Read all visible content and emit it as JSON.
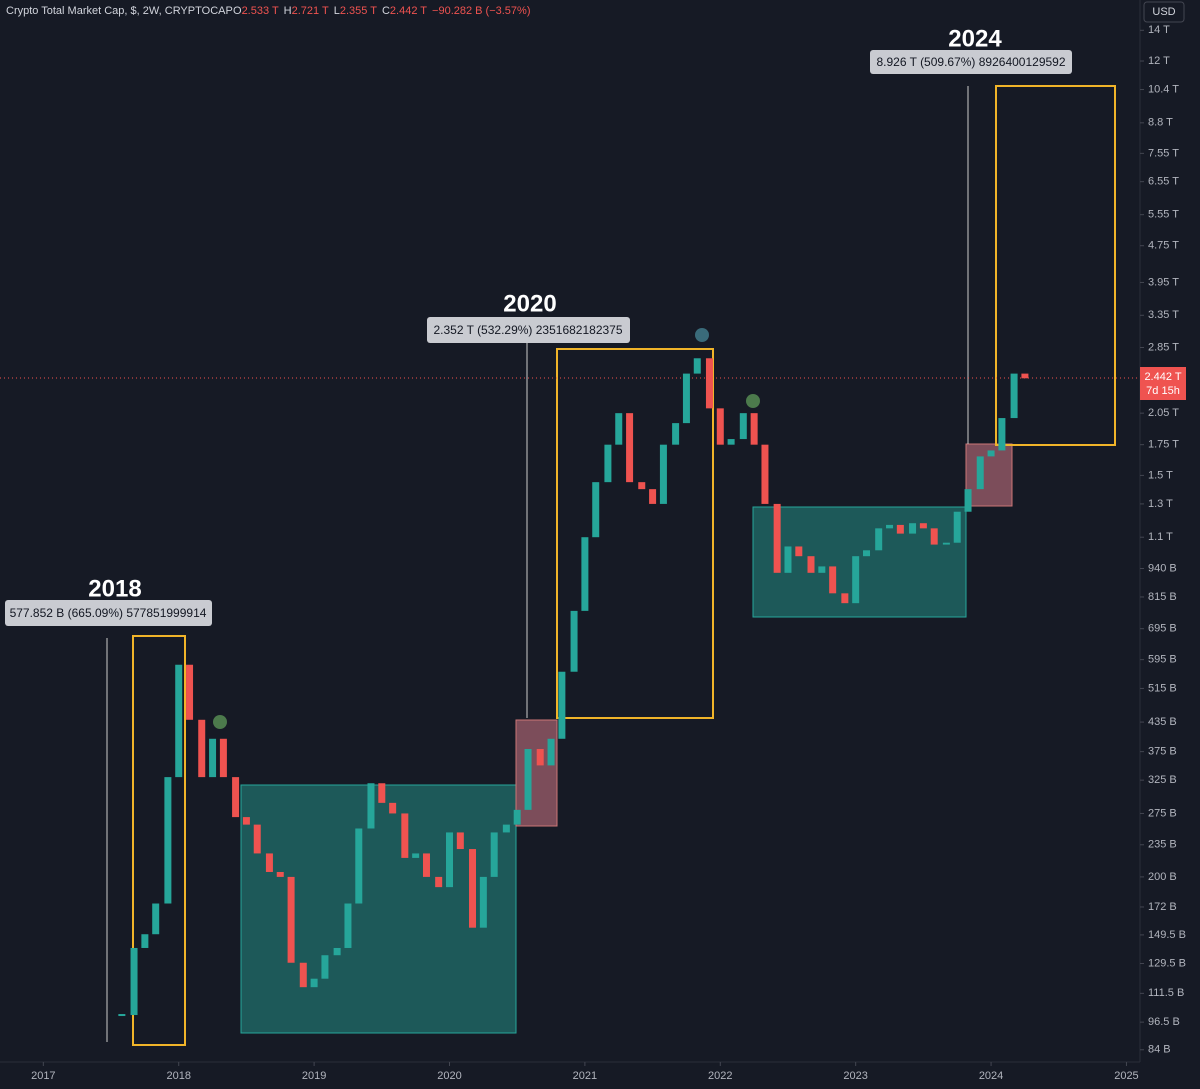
{
  "chart_data": {
    "type": "candlestick",
    "title": "Crypto Total Market Cap, $, 2W, CRYPTOCAP",
    "ohlc": [
      {
        "label": "O",
        "value": "2.533 T"
      },
      {
        "label": "H",
        "value": "2.721 T"
      },
      {
        "label": "L",
        "value": "2.355 T"
      },
      {
        "label": "C",
        "value": "2.442 T"
      }
    ],
    "change": "−90.282 B (−3.57%)",
    "currency": "USD",
    "last_price_label": "2.442 T",
    "countdown": "7d 15h",
    "annotations": [
      {
        "title": "2018",
        "measure": "577.852 B (665.09%) 577851999914"
      },
      {
        "title": "2020",
        "measure": "2.352 T (532.29%) 2351682182375"
      },
      {
        "title": "2024",
        "measure": "8.926 T (509.67%) 8926400129592"
      }
    ],
    "log_scale": true,
    "up_color": "#26a69a",
    "down_color": "#ef5350",
    "x": [
      2017.58,
      2017.67,
      2017.75,
      2017.83,
      2017.92,
      2018.0,
      2018.08,
      2018.17,
      2018.25,
      2018.33,
      2018.42,
      2018.5,
      2018.58,
      2018.67,
      2018.75,
      2018.83,
      2018.92,
      2019.0,
      2019.08,
      2019.17,
      2019.25,
      2019.33,
      2019.42,
      2019.5,
      2019.58,
      2019.67,
      2019.75,
      2019.83,
      2019.92,
      2020.0,
      2020.08,
      2020.17,
      2020.25,
      2020.33,
      2020.42,
      2020.5,
      2020.58,
      2020.67,
      2020.75,
      2020.83,
      2020.92,
      2021.0,
      2021.08,
      2021.17,
      2021.25,
      2021.33,
      2021.42,
      2021.5,
      2021.58,
      2021.67,
      2021.75,
      2021.83,
      2021.92,
      2022.0,
      2022.08,
      2022.17,
      2022.25,
      2022.33,
      2022.42,
      2022.5,
      2022.58,
      2022.67,
      2022.75,
      2022.83,
      2022.92,
      2023.0,
      2023.08,
      2023.17,
      2023.25,
      2023.33,
      2023.42,
      2023.5,
      2023.58,
      2023.67,
      2023.75,
      2023.83,
      2023.92,
      2024.0,
      2024.08,
      2024.17,
      2024.25
    ],
    "values": [
      100,
      140,
      150,
      175,
      330,
      580,
      440,
      330,
      400,
      330,
      270,
      260,
      225,
      205,
      200,
      130,
      115,
      120,
      135,
      140,
      175,
      255,
      320,
      290,
      275,
      220,
      225,
      200,
      190,
      250,
      230,
      155,
      200,
      250,
      260,
      280,
      380,
      350,
      400,
      560,
      760,
      1100,
      1450,
      1750,
      2050,
      1450,
      1400,
      1300,
      1750,
      1950,
      2500,
      2700,
      2100,
      1750,
      1800,
      2050,
      1750,
      1300,
      920,
      1050,
      1000,
      920,
      950,
      830,
      790,
      1000,
      1030,
      1150,
      1170,
      1120,
      1180,
      1150,
      1060,
      1070,
      1250,
      1400,
      1650,
      1700,
      2000,
      2500,
      2442
    ],
    "xlim": [
      2016.68,
      2025.1
    ],
    "xticks": [
      2017,
      2018,
      2019,
      2020,
      2021,
      2022,
      2023,
      2024,
      2025
    ],
    "ylim": [
      79,
      16300
    ],
    "yticks": [
      {
        "value": 14000,
        "label": "14 T"
      },
      {
        "value": 12000,
        "label": "12 T"
      },
      {
        "value": 10400,
        "label": "10.4 T"
      },
      {
        "value": 8800,
        "label": "8.8 T"
      },
      {
        "value": 7550,
        "label": "7.55 T"
      },
      {
        "value": 6550,
        "label": "6.55 T"
      },
      {
        "value": 5550,
        "label": "5.55 T"
      },
      {
        "value": 4750,
        "label": "4.75 T"
      },
      {
        "value": 3950,
        "label": "3.95 T"
      },
      {
        "value": 3350,
        "label": "3.35 T"
      },
      {
        "value": 2850,
        "label": "2.85 T"
      },
      {
        "value": 2050,
        "label": "2.05 T"
      },
      {
        "value": 1750,
        "label": "1.75 T"
      },
      {
        "value": 1500,
        "label": "1.5 T"
      },
      {
        "value": 1300,
        "label": "1.3 T"
      },
      {
        "value": 1100,
        "label": "1.1 T"
      },
      {
        "value": 940,
        "label": "940 B"
      },
      {
        "value": 815,
        "label": "815 B"
      },
      {
        "value": 695,
        "label": "695 B"
      },
      {
        "value": 595,
        "label": "595 B"
      },
      {
        "value": 515,
        "label": "515 B"
      },
      {
        "value": 435,
        "label": "435 B"
      },
      {
        "value": 375,
        "label": "375 B"
      },
      {
        "value": 325,
        "label": "325 B"
      },
      {
        "value": 275,
        "label": "275 B"
      },
      {
        "value": 235,
        "label": "235 B"
      },
      {
        "value": 200,
        "label": "200 B"
      },
      {
        "value": 172,
        "label": "172 B"
      },
      {
        "value": 149.5,
        "label": "149.5 B"
      },
      {
        "value": 129.5,
        "label": "129.5 B"
      },
      {
        "value": 111.5,
        "label": "111.5 B"
      },
      {
        "value": 96.5,
        "label": "96.5 B"
      },
      {
        "value": 84,
        "label": "84 B"
      }
    ]
  }
}
